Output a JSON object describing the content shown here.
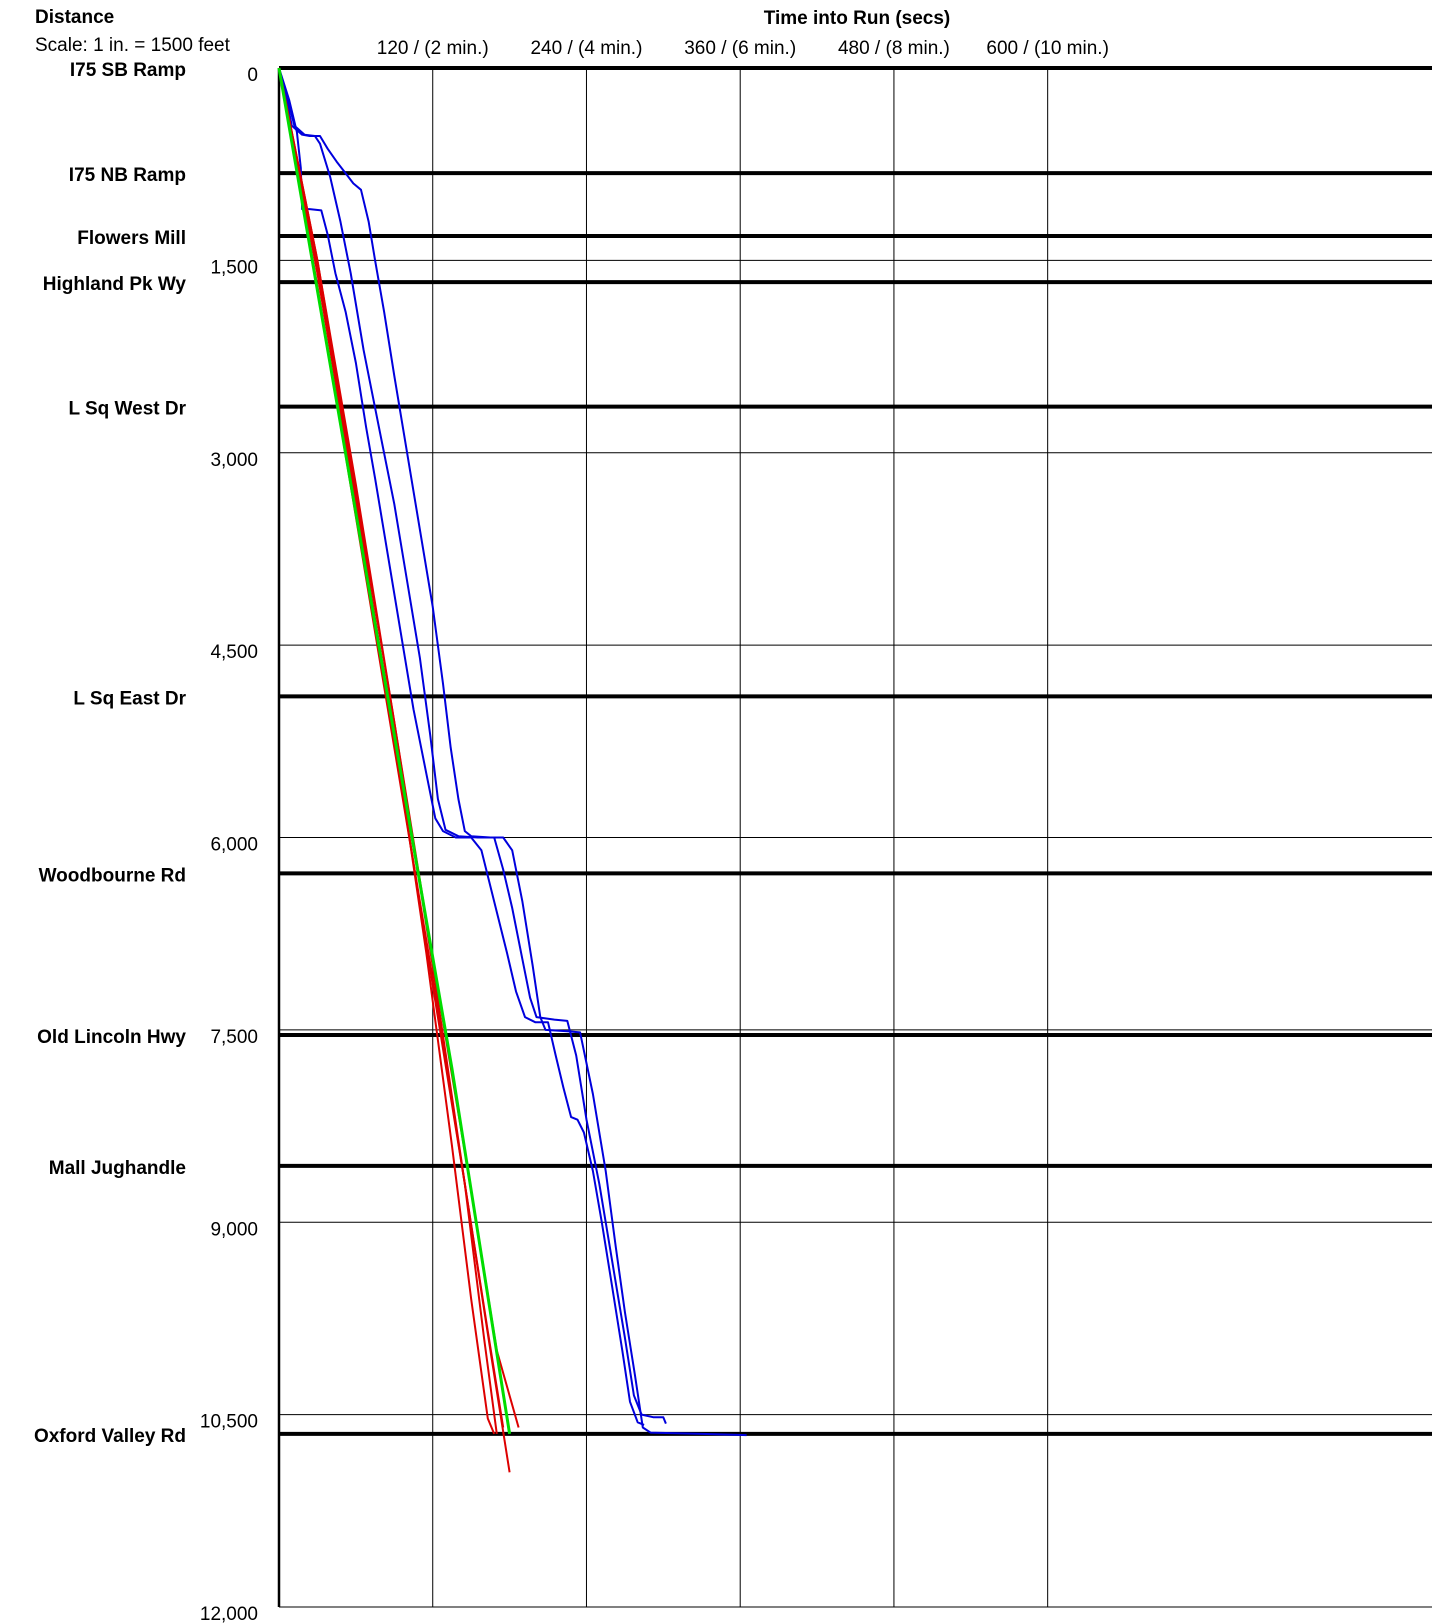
{
  "chart_data": {
    "type": "line",
    "title": "Time into Run (secs)",
    "y_header": "Distance",
    "scale_note": "Scale: 1 in. = 1500 feet",
    "xlim": [
      0,
      900
    ],
    "ylim": [
      0,
      12000
    ],
    "y_inverted": true,
    "x_ticks": [
      {
        "value": 120,
        "label": "120 / (2 min.)"
      },
      {
        "value": 240,
        "label": "240 / (4 min.)"
      },
      {
        "value": 360,
        "label": "360 / (6 min.)"
      },
      {
        "value": 480,
        "label": "480 / (8 min.)"
      },
      {
        "value": 600,
        "label": "600 / (10 min.)"
      }
    ],
    "y_ticks": [
      {
        "value": 0,
        "label": "0"
      },
      {
        "value": 1500,
        "label": "1,500"
      },
      {
        "value": 3000,
        "label": "3,000"
      },
      {
        "value": 4500,
        "label": "4,500"
      },
      {
        "value": 6000,
        "label": "6,000"
      },
      {
        "value": 7500,
        "label": "7,500"
      },
      {
        "value": 9000,
        "label": "9,000"
      },
      {
        "value": 10500,
        "label": "10,500"
      },
      {
        "value": 12000,
        "label": "12,000"
      }
    ],
    "intersections": [
      {
        "name": "I75 SB Ramp",
        "distance": 0
      },
      {
        "name": "I75 NB Ramp",
        "distance": 820
      },
      {
        "name": "Flowers Mill",
        "distance": 1310
      },
      {
        "name": "Highland Pk Wy",
        "distance": 1670
      },
      {
        "name": "L Sq West Dr",
        "distance": 2640
      },
      {
        "name": "L Sq East Dr",
        "distance": 4900
      },
      {
        "name": "Woodbourne Rd",
        "distance": 6280
      },
      {
        "name": "Old Lincoln Hwy",
        "distance": 7540
      },
      {
        "name": "Mall Jughandle",
        "distance": 8560
      },
      {
        "name": "Oxford Valley Rd",
        "distance": 10650
      }
    ],
    "series": [
      {
        "color": "#0000dd",
        "points": [
          [
            0,
            0
          ],
          [
            7,
            250
          ],
          [
            12,
            450
          ],
          [
            20,
            520
          ],
          [
            28,
            530
          ],
          [
            32,
            590
          ],
          [
            40,
            850
          ],
          [
            48,
            1200
          ],
          [
            56,
            1600
          ],
          [
            66,
            2200
          ],
          [
            78,
            2800
          ],
          [
            90,
            3400
          ],
          [
            100,
            4000
          ],
          [
            110,
            4600
          ],
          [
            118,
            5200
          ],
          [
            124,
            5700
          ],
          [
            130,
            5940
          ],
          [
            140,
            5990
          ],
          [
            155,
            6000
          ],
          [
            168,
            6000
          ],
          [
            175,
            6250
          ],
          [
            182,
            6550
          ],
          [
            190,
            6950
          ],
          [
            196,
            7250
          ],
          [
            201,
            7400
          ],
          [
            215,
            7420
          ],
          [
            225,
            7430
          ],
          [
            232,
            7700
          ],
          [
            240,
            8200
          ],
          [
            250,
            8700
          ],
          [
            260,
            9300
          ],
          [
            270,
            9900
          ],
          [
            277,
            10350
          ],
          [
            283,
            10500
          ],
          [
            292,
            10520
          ],
          [
            300,
            10520
          ],
          [
            302,
            10570
          ]
        ]
      },
      {
        "color": "#0000dd",
        "points": [
          [
            0,
            0
          ],
          [
            6,
            250
          ],
          [
            10,
            450
          ],
          [
            18,
            520
          ],
          [
            24,
            530
          ],
          [
            32,
            530
          ],
          [
            38,
            630
          ],
          [
            45,
            730
          ],
          [
            52,
            820
          ],
          [
            58,
            900
          ],
          [
            64,
            950
          ],
          [
            70,
            1200
          ],
          [
            75,
            1500
          ],
          [
            82,
            1900
          ],
          [
            90,
            2400
          ],
          [
            100,
            3000
          ],
          [
            110,
            3600
          ],
          [
            120,
            4200
          ],
          [
            128,
            4800
          ],
          [
            134,
            5300
          ],
          [
            140,
            5700
          ],
          [
            145,
            5950
          ],
          [
            150,
            5990
          ],
          [
            165,
            6000
          ],
          [
            175,
            6000
          ],
          [
            182,
            6100
          ],
          [
            190,
            6500
          ],
          [
            198,
            7000
          ],
          [
            204,
            7400
          ],
          [
            208,
            7500
          ],
          [
            225,
            7510
          ],
          [
            235,
            7520
          ],
          [
            245,
            8000
          ],
          [
            255,
            8600
          ],
          [
            263,
            9200
          ],
          [
            270,
            9700
          ],
          [
            278,
            10200
          ],
          [
            284,
            10600
          ],
          [
            290,
            10640
          ],
          [
            330,
            10650
          ],
          [
            365,
            10660
          ]
        ]
      },
      {
        "color": "#0000dd",
        "points": [
          [
            0,
            0
          ],
          [
            8,
            250
          ],
          [
            14,
            500
          ],
          [
            17,
            780
          ],
          [
            18,
            1100
          ],
          [
            24,
            1100
          ],
          [
            33,
            1110
          ],
          [
            38,
            1300
          ],
          [
            44,
            1600
          ],
          [
            52,
            1900
          ],
          [
            60,
            2300
          ],
          [
            68,
            2800
          ],
          [
            75,
            3200
          ],
          [
            85,
            3800
          ],
          [
            95,
            4400
          ],
          [
            105,
            5000
          ],
          [
            115,
            5500
          ],
          [
            122,
            5850
          ],
          [
            128,
            5950
          ],
          [
            138,
            6000
          ],
          [
            150,
            6000
          ],
          [
            158,
            6100
          ],
          [
            168,
            6500
          ],
          [
            178,
            6900
          ],
          [
            185,
            7200
          ],
          [
            192,
            7400
          ],
          [
            200,
            7440
          ],
          [
            210,
            7440
          ],
          [
            216,
            7700
          ],
          [
            222,
            7950
          ],
          [
            228,
            8180
          ],
          [
            233,
            8200
          ],
          [
            238,
            8300
          ],
          [
            245,
            8600
          ],
          [
            252,
            9000
          ],
          [
            260,
            9500
          ],
          [
            268,
            10000
          ],
          [
            274,
            10400
          ],
          [
            280,
            10560
          ],
          [
            285,
            10580
          ]
        ]
      },
      {
        "color": "#dd0000",
        "points": [
          [
            0,
            0
          ],
          [
            30,
            1700
          ],
          [
            60,
            3500
          ],
          [
            90,
            5300
          ],
          [
            120,
            7100
          ],
          [
            145,
            8700
          ],
          [
            165,
            10000
          ],
          [
            180,
            10950
          ]
        ]
      },
      {
        "color": "#dd0000",
        "points": [
          [
            0,
            0
          ],
          [
            30,
            1500
          ],
          [
            60,
            3300
          ],
          [
            90,
            5100
          ],
          [
            120,
            7000
          ],
          [
            145,
            8700
          ],
          [
            160,
            9900
          ],
          [
            170,
            10650
          ]
        ]
      },
      {
        "color": "#dd0000",
        "points": [
          [
            0,
            0
          ],
          [
            30,
            1600
          ],
          [
            60,
            3400
          ],
          [
            90,
            5200
          ],
          [
            115,
            6900
          ],
          [
            135,
            8400
          ],
          [
            150,
            9600
          ],
          [
            163,
            10530
          ],
          [
            168,
            10650
          ]
        ]
      },
      {
        "color": "#dd0000",
        "points": [
          [
            0,
            0
          ],
          [
            30,
            1550
          ],
          [
            60,
            3350
          ],
          [
            90,
            5250
          ],
          [
            120,
            7150
          ],
          [
            145,
            8700
          ],
          [
            163,
            9850
          ],
          [
            175,
            10600
          ]
        ]
      },
      {
        "color": "#dd0000",
        "points": [
          [
            0,
            0
          ],
          [
            30,
            1500
          ],
          [
            60,
            3250
          ],
          [
            90,
            5100
          ],
          [
            120,
            6950
          ],
          [
            150,
            8750
          ],
          [
            170,
            10000
          ],
          [
            187,
            10600
          ]
        ]
      },
      {
        "color": "#00dd00",
        "width": 3,
        "points": [
          [
            0,
            0
          ],
          [
            45,
            2600
          ],
          [
            90,
            5200
          ],
          [
            135,
            7800
          ],
          [
            180,
            10650
          ]
        ]
      }
    ]
  }
}
